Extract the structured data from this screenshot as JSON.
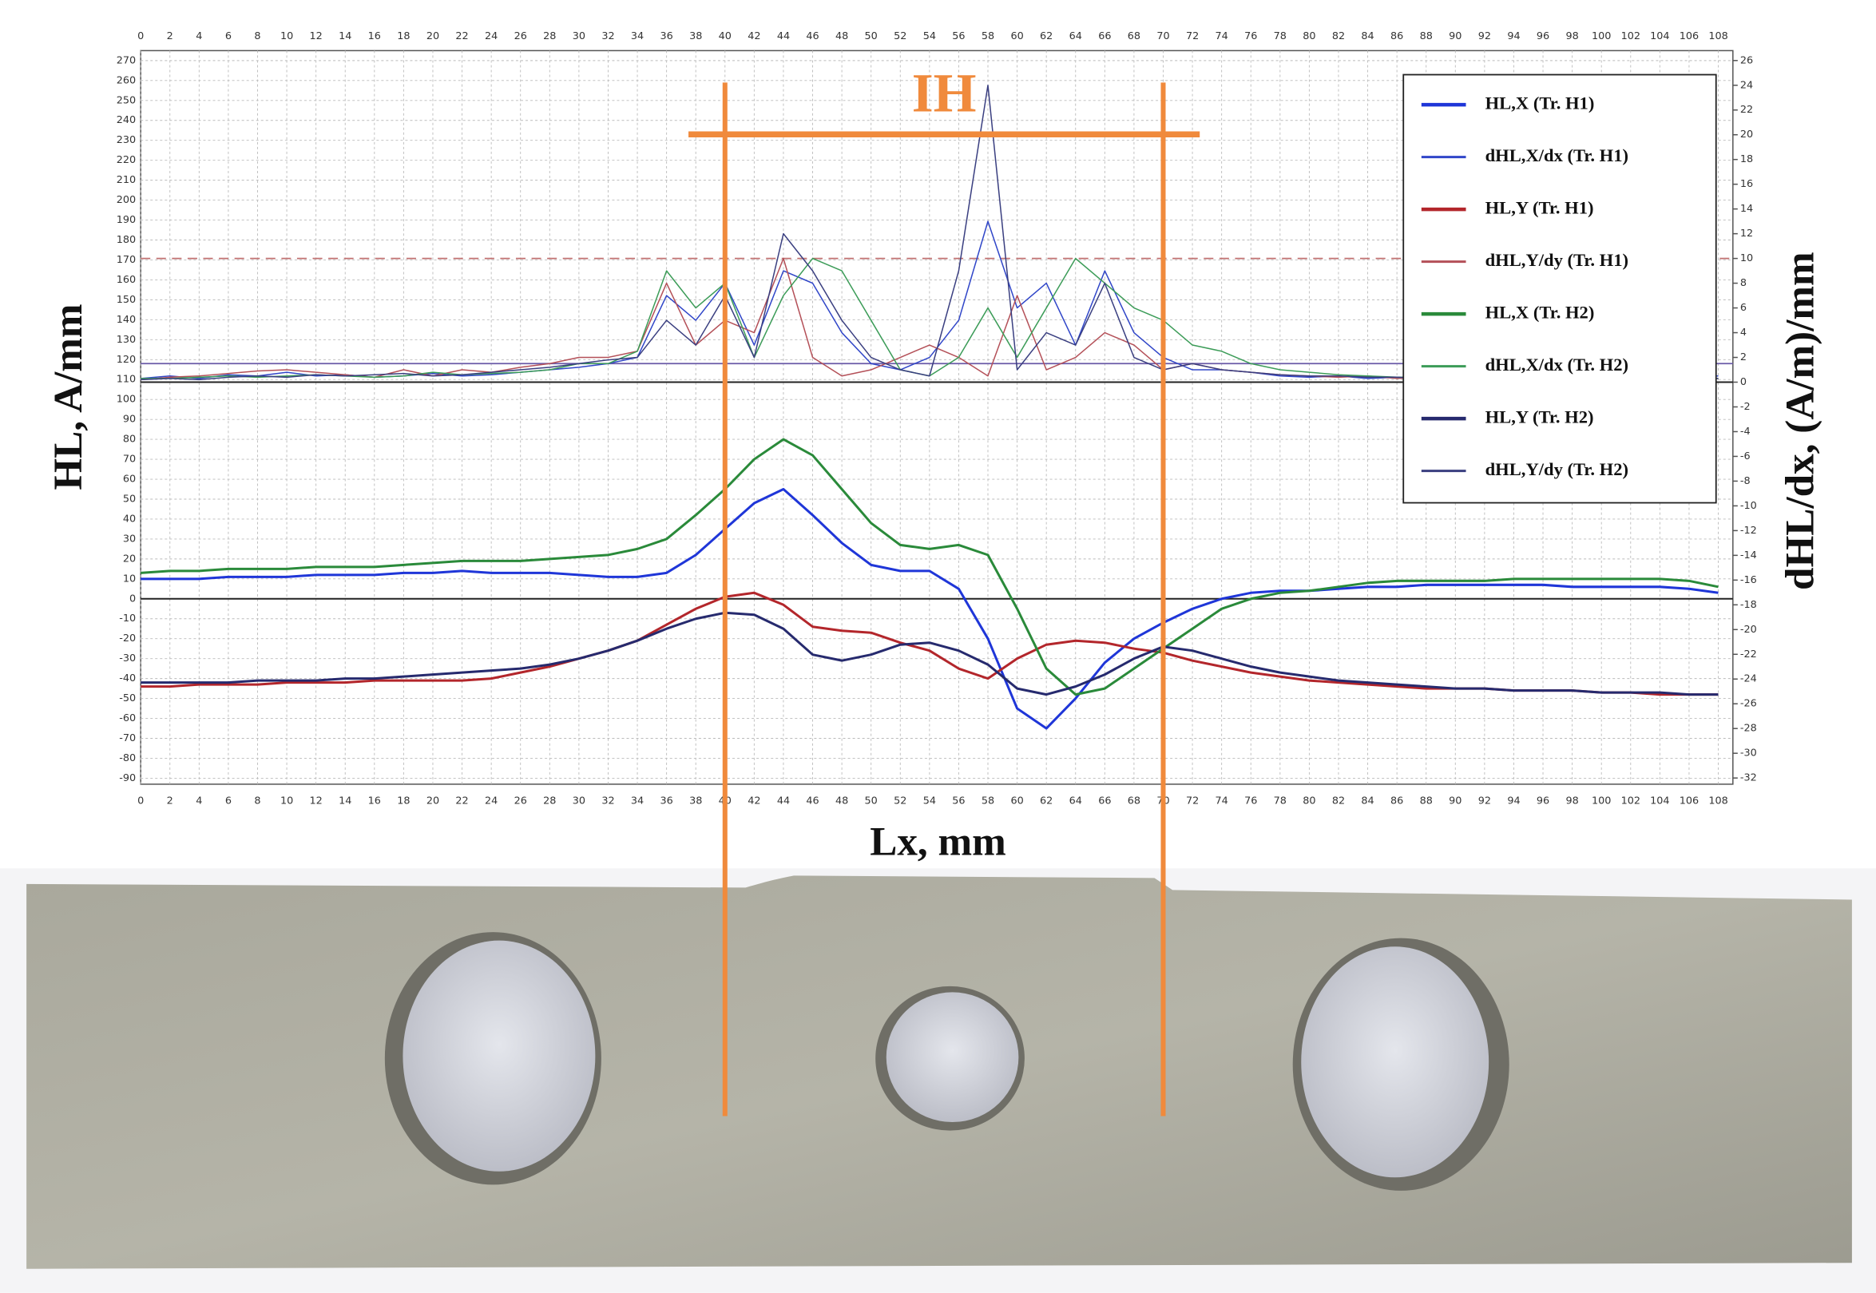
{
  "chart_data": {
    "type": "line",
    "xlabel": "Lx, mm",
    "ylabel": "HL, A/mm",
    "y2label": "dHL/dx, (A/m)/mm",
    "annotation": {
      "text": "IH",
      "color": "#f08a3c",
      "bar_x": [
        37.5,
        72.5
      ],
      "bar_y": 233,
      "lines_x": [
        40,
        70
      ],
      "lines_top": 259
    },
    "xlim": [
      0,
      109
    ],
    "ylim": [
      -93,
      275
    ],
    "y2lim": [
      -32.5,
      26.8
    ],
    "grid": true,
    "zero_lines": true,
    "legend": "upper right",
    "xticks": [
      0,
      2,
      4,
      6,
      8,
      10,
      12,
      14,
      16,
      18,
      20,
      22,
      24,
      26,
      28,
      30,
      32,
      34,
      36,
      38,
      40,
      42,
      44,
      46,
      48,
      50,
      52,
      54,
      56,
      58,
      60,
      62,
      64,
      66,
      68,
      70,
      72,
      74,
      76,
      78,
      80,
      82,
      84,
      86,
      88,
      90,
      92,
      94,
      96,
      98,
      100,
      102,
      104,
      106,
      108
    ],
    "yticks": [
      -90,
      -80,
      -70,
      -60,
      -50,
      -40,
      -30,
      -20,
      -10,
      0,
      10,
      20,
      30,
      40,
      50,
      60,
      70,
      80,
      90,
      100,
      110,
      120,
      130,
      140,
      150,
      160,
      170,
      180,
      190,
      200,
      210,
      220,
      230,
      240,
      250,
      260,
      270
    ],
    "y2ticks": [
      -32,
      -30,
      -28,
      -26,
      -24,
      -22,
      -20,
      -18,
      -16,
      -14,
      -12,
      -10,
      -8,
      -6,
      -4,
      -2,
      0,
      2,
      4,
      6,
      8,
      10,
      12,
      14,
      16,
      18,
      20,
      22,
      24,
      26
    ],
    "y2_reference_lines": [
      {
        "value": 10,
        "color": "#c07070",
        "dashed": true
      },
      {
        "value": 1.5,
        "color": "#6a5aa8",
        "dashed": false
      }
    ],
    "x": [
      0,
      2,
      4,
      6,
      8,
      10,
      12,
      14,
      16,
      18,
      20,
      22,
      24,
      26,
      28,
      30,
      32,
      34,
      36,
      38,
      40,
      42,
      44,
      46,
      48,
      50,
      52,
      54,
      56,
      58,
      60,
      62,
      64,
      66,
      68,
      70,
      72,
      74,
      76,
      78,
      80,
      82,
      84,
      86,
      88,
      90,
      92,
      94,
      96,
      98,
      100,
      102,
      104,
      106,
      108
    ],
    "series": [
      {
        "name": "HL,X (Tr. H1)",
        "color": "#1f36d8",
        "line_width": 2,
        "values": [
          10,
          10,
          10,
          11,
          11,
          11,
          12,
          12,
          12,
          13,
          13,
          14,
          13,
          13,
          13,
          12,
          11,
          11,
          13,
          22,
          35,
          48,
          55,
          42,
          28,
          17,
          14,
          14,
          5,
          -20,
          -55,
          -65,
          -50,
          -32,
          -20,
          -12,
          -5,
          0,
          3,
          4,
          4,
          5,
          6,
          6,
          7,
          7,
          7,
          7,
          7,
          6,
          6,
          6,
          6,
          5,
          3
        ]
      },
      {
        "name": "dHL,X/dx (Tr. H1)",
        "color": "#3046c8",
        "line_width": 1,
        "axis": "y2",
        "values": [
          0.3,
          0.5,
          0.3,
          0.6,
          0.5,
          0.8,
          0.5,
          0.6,
          0.4,
          0.5,
          0.7,
          0.5,
          0.6,
          0.8,
          1,
          1.2,
          1.5,
          2,
          7,
          5,
          8,
          3,
          9,
          8,
          4,
          1.5,
          1,
          2,
          5,
          13,
          6,
          8,
          3,
          9,
          4,
          2,
          1,
          1,
          0.8,
          0.5,
          0.4,
          0.5,
          0.3,
          0.4,
          0.3,
          0.4,
          0.3,
          0.4,
          0.3,
          0.3,
          0.4,
          0.3,
          0.3,
          0.4,
          0.5
        ]
      },
      {
        "name": "HL,Y (Tr. H1)",
        "color": "#b3262b",
        "line_width": 2,
        "values": [
          -44,
          -44,
          -43,
          -43,
          -43,
          -42,
          -42,
          -42,
          -41,
          -41,
          -41,
          -41,
          -40,
          -37,
          -34,
          -30,
          -26,
          -21,
          -13,
          -5,
          1,
          3,
          -3,
          -14,
          -16,
          -17,
          -22,
          -26,
          -35,
          -40,
          -30,
          -23,
          -21,
          -22,
          -25,
          -27,
          -31,
          -34,
          -37,
          -39,
          -41,
          -42,
          -43,
          -44,
          -45,
          -45,
          -45,
          -46,
          -46,
          -46,
          -47,
          -47,
          -48,
          -48,
          -48
        ]
      },
      {
        "name": "dHL,Y/dy (Tr. H1)",
        "color": "#b45058",
        "line_width": 1,
        "axis": "y2",
        "values": [
          0.2,
          0.4,
          0.5,
          0.7,
          0.9,
          1,
          0.8,
          0.6,
          0.4,
          1,
          0.5,
          1,
          0.8,
          1.2,
          1.5,
          2,
          2,
          2.5,
          8,
          3,
          5,
          4,
          10,
          2,
          0.5,
          1,
          2,
          3,
          2,
          0.5,
          7,
          1,
          2,
          4,
          3,
          1,
          1.5,
          1,
          0.8,
          0.6,
          0.5,
          0.4,
          0.5,
          0.3,
          0.4,
          0.3,
          0.3,
          0.4,
          0.3,
          0.3,
          0.3,
          0.4,
          0.3,
          0.3,
          0.3
        ]
      },
      {
        "name": "HL,X (Tr. H2)",
        "color": "#2a8a3a",
        "line_width": 2,
        "values": [
          13,
          14,
          14,
          15,
          15,
          15,
          16,
          16,
          16,
          17,
          18,
          19,
          19,
          19,
          20,
          21,
          22,
          25,
          30,
          42,
          55,
          70,
          80,
          72,
          55,
          38,
          27,
          25,
          27,
          22,
          -5,
          -35,
          -48,
          -45,
          -35,
          -25,
          -15,
          -5,
          0,
          3,
          4,
          6,
          8,
          9,
          9,
          9,
          9,
          10,
          10,
          10,
          10,
          10,
          10,
          9,
          6
        ]
      },
      {
        "name": "dHL,X/dx (Tr. H2)",
        "color": "#3c9c58",
        "line_width": 1,
        "axis": "y2",
        "values": [
          0.3,
          0.3,
          0.4,
          0.5,
          0.4,
          0.5,
          0.6,
          0.5,
          0.4,
          0.5,
          0.8,
          0.6,
          0.7,
          0.8,
          1,
          1.5,
          1.5,
          2.5,
          9,
          6,
          8,
          2,
          7,
          10,
          9,
          5,
          1,
          0.5,
          2,
          6,
          2,
          6,
          10,
          8,
          6,
          5,
          3,
          2.5,
          1.5,
          1,
          0.8,
          0.6,
          0.5,
          0.4,
          0.4,
          0.4,
          0.3,
          0.3,
          0.3,
          0.4,
          0.3,
          0.3,
          0.3,
          0.3,
          0.3
        ]
      },
      {
        "name": "HL,Y (Tr. H2)",
        "color": "#262a6e",
        "line_width": 2,
        "values": [
          -42,
          -42,
          -42,
          -42,
          -41,
          -41,
          -41,
          -40,
          -40,
          -39,
          -38,
          -37,
          -36,
          -35,
          -33,
          -30,
          -26,
          -21,
          -15,
          -10,
          -7,
          -8,
          -15,
          -28,
          -31,
          -28,
          -23,
          -22,
          -26,
          -33,
          -45,
          -48,
          -44,
          -38,
          -30,
          -24,
          -26,
          -30,
          -34,
          -37,
          -39,
          -41,
          -42,
          -43,
          -44,
          -45,
          -45,
          -46,
          -46,
          -46,
          -47,
          -47,
          -47,
          -48,
          -48
        ]
      },
      {
        "name": "dHL,Y/dy (Tr. H2)",
        "color": "#3a3f80",
        "line_width": 1,
        "axis": "y2",
        "values": [
          0.2,
          0.3,
          0.2,
          0.4,
          0.5,
          0.4,
          0.6,
          0.5,
          0.6,
          0.7,
          0.5,
          0.6,
          0.8,
          1,
          1.2,
          1.5,
          1.8,
          2,
          5,
          3,
          7,
          2,
          12,
          9,
          5,
          2,
          1,
          0.5,
          9,
          24,
          1,
          4,
          3,
          8,
          2,
          1,
          1.5,
          1,
          0.8,
          0.6,
          0.5,
          0.5,
          0.4,
          0.4,
          0.3,
          0.3,
          0.3,
          0.4,
          0.3,
          0.3,
          0.3,
          0.3,
          0.3,
          0.3,
          0.3
        ]
      }
    ]
  }
}
